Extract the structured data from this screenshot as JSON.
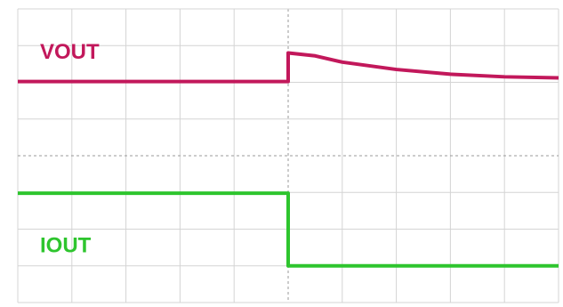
{
  "chart_data": {
    "type": "line",
    "xlim": [
      0,
      10
    ],
    "ylim": [
      -4,
      4
    ],
    "xticks": [
      0,
      1,
      2,
      3,
      4,
      5,
      6,
      7,
      8,
      9,
      10
    ],
    "yticks": [
      -4,
      -3,
      -2,
      -1,
      0,
      1,
      2,
      3,
      4
    ],
    "grid": true,
    "series": [
      {
        "name": "VOUT",
        "color": "#c2185b",
        "x": [
          0,
          5,
          5,
          5.5,
          6,
          7,
          8,
          9,
          10
        ],
        "values": [
          2.02,
          2.02,
          2.8,
          2.72,
          2.55,
          2.35,
          2.22,
          2.15,
          2.12
        ]
      },
      {
        "name": "IOUT",
        "color": "#2ec52e",
        "x": [
          0,
          5,
          5,
          10
        ],
        "values": [
          -1.02,
          -1.02,
          -3.0,
          -3.0
        ]
      }
    ]
  }
}
